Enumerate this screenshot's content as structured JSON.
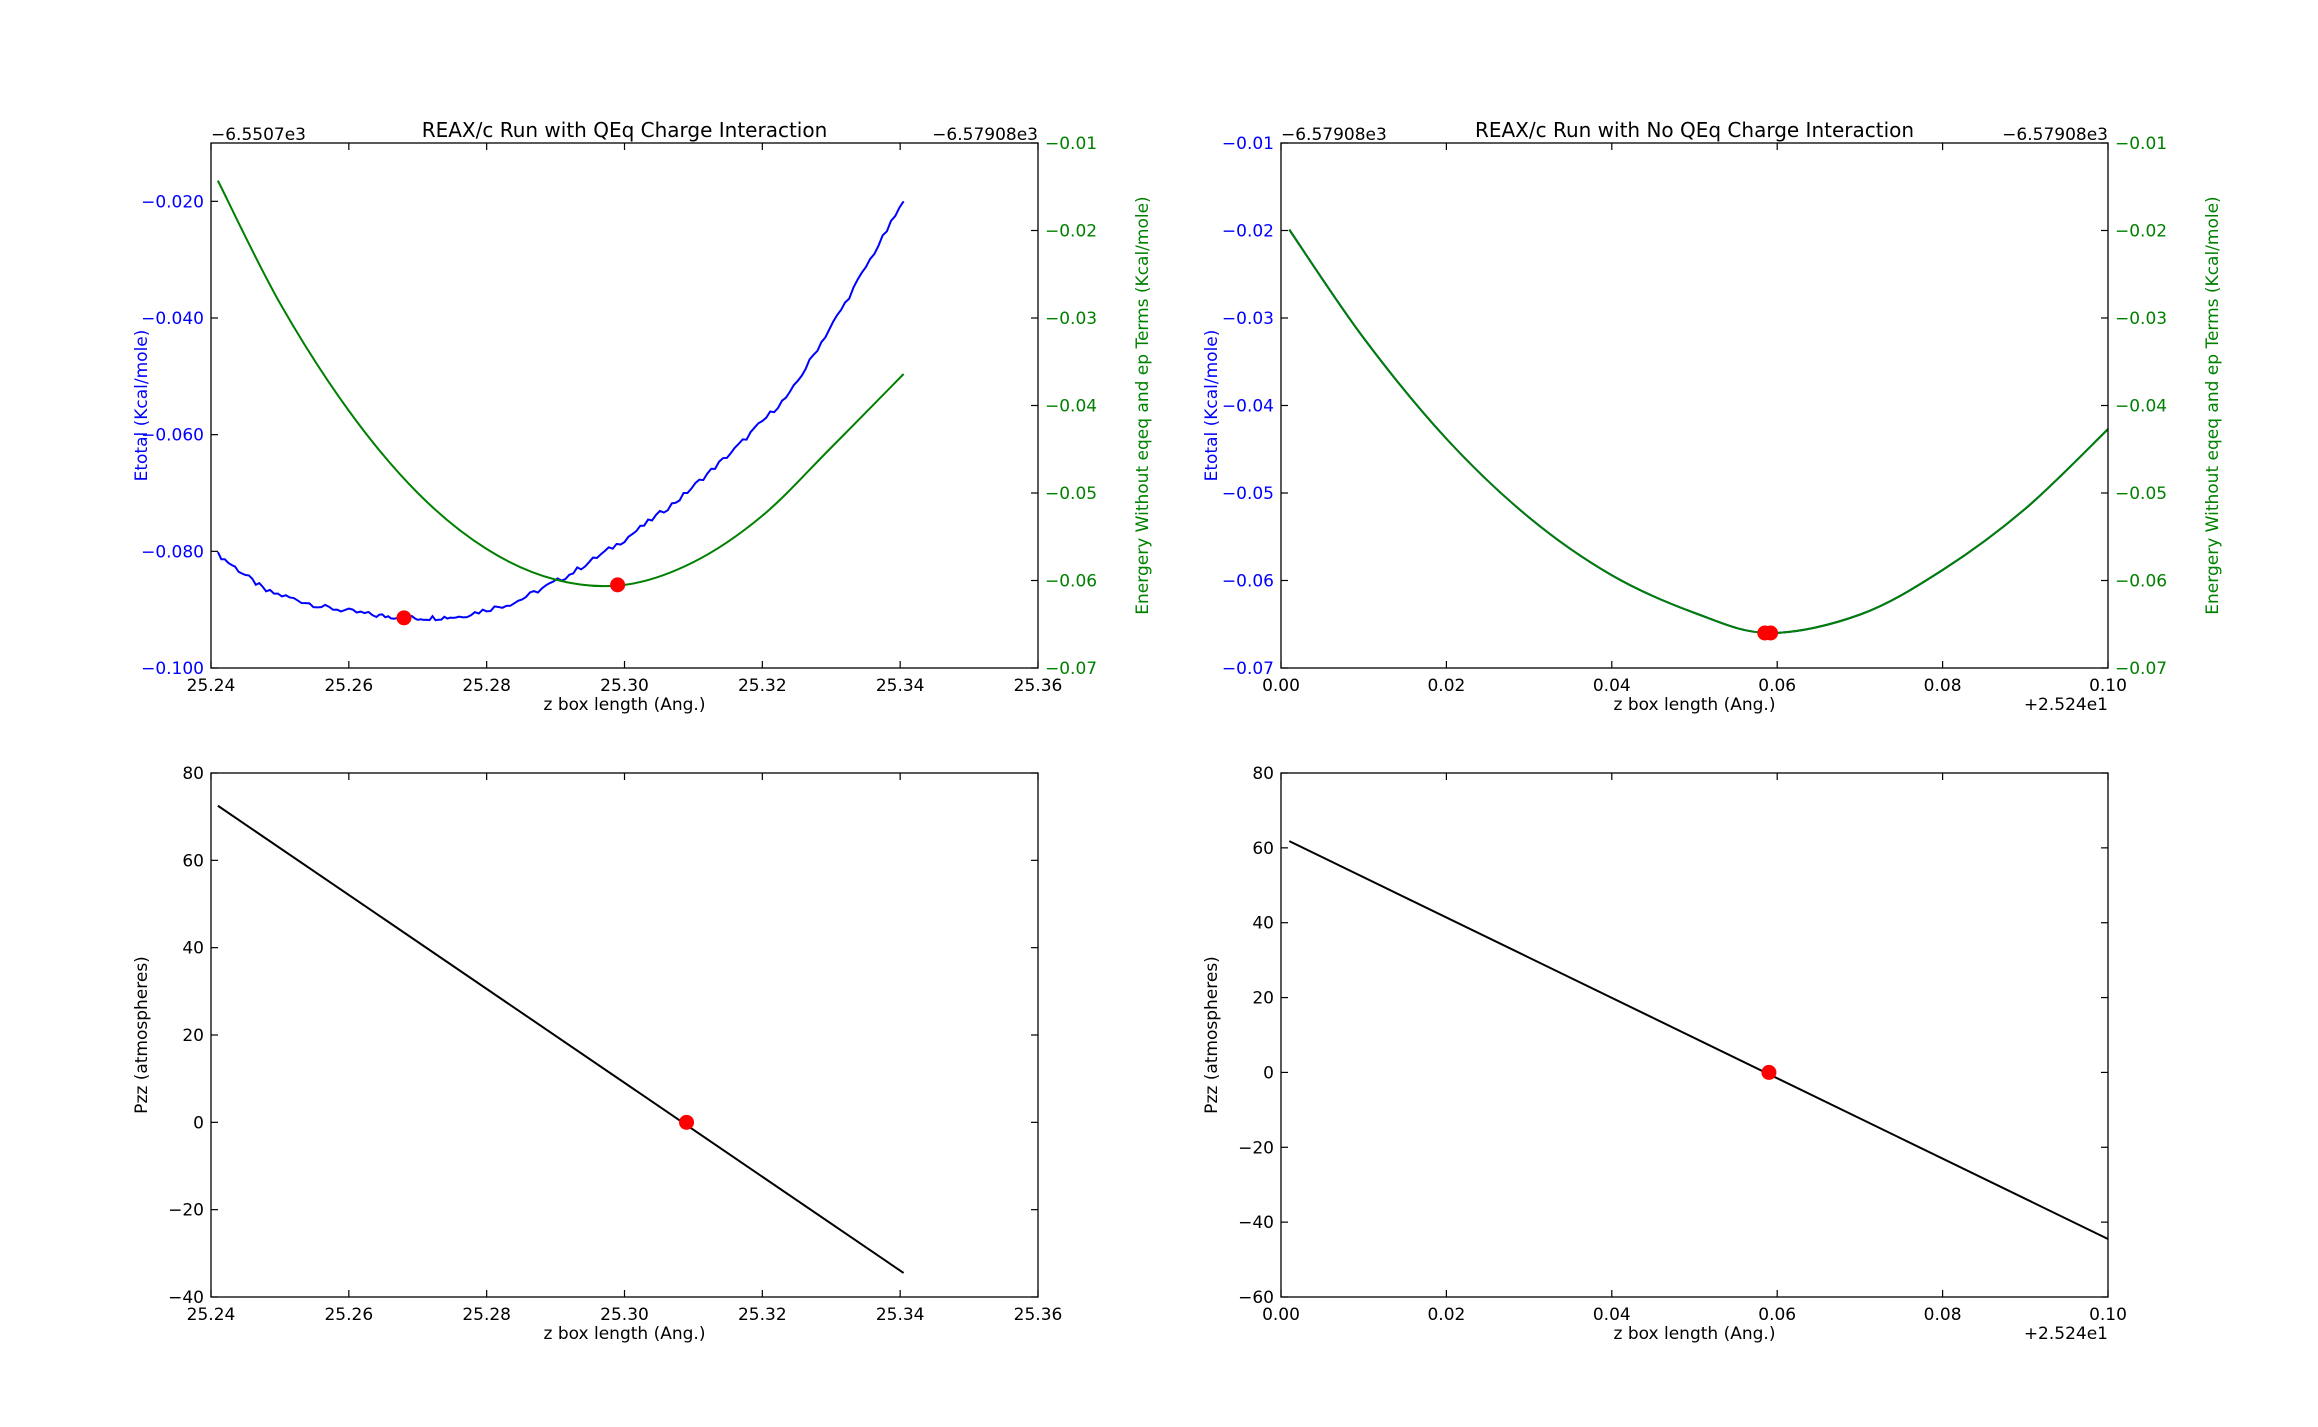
{
  "figure": {
    "colors": {
      "blue": "#0000ff",
      "green": "#008000",
      "black": "#000000",
      "red": "#ff0000",
      "background": "#ffffff"
    }
  },
  "chart_data": [
    {
      "id": "qeq-energy",
      "type": "line",
      "title": "REAX/c Run with QEq Charge Interaction",
      "xlabel": "z box length (Ang.)",
      "xlim": [
        25.24,
        25.36
      ],
      "xticks": [
        "25.24",
        "25.26",
        "25.28",
        "25.30",
        "25.32",
        "25.34",
        "25.36"
      ],
      "left_axis": {
        "label": "Etotal (Kcal/mole)",
        "offset_text": "−6.5507e3",
        "ylim": [
          -0.1,
          -0.01
        ],
        "ticks": [
          -0.1,
          -0.08,
          -0.06,
          -0.04,
          -0.02
        ],
        "tick_labels": [
          "−0.100",
          "−0.080",
          "−0.060",
          "−0.040",
          "−0.020"
        ],
        "color": "#0000ff"
      },
      "right_axis": {
        "label": "Energery Without eqeq and ep Terms (Kcal/mole)",
        "offset_text": "−6.57908e3",
        "ylim": [
          -0.07,
          -0.01
        ],
        "ticks": [
          -0.07,
          -0.06,
          -0.05,
          -0.04,
          -0.03,
          -0.02,
          -0.01
        ],
        "tick_labels": [
          "−0.07",
          "−0.06",
          "−0.05",
          "−0.04",
          "−0.03",
          "−0.02",
          "−0.01"
        ],
        "color": "#008000"
      },
      "series": [
        {
          "axis": "left",
          "color": "#0000ff",
          "noisy": true,
          "x": [
            25.241,
            25.248,
            25.256,
            25.264,
            25.27,
            25.276,
            25.284,
            25.292,
            25.3,
            25.308,
            25.316,
            25.324,
            25.332,
            25.3405
          ],
          "y": [
            -0.0805,
            -0.0868,
            -0.0895,
            -0.091,
            -0.0915,
            -0.0912,
            -0.0888,
            -0.084,
            -0.078,
            -0.071,
            -0.0625,
            -0.053,
            -0.0375,
            -0.02
          ]
        },
        {
          "axis": "right",
          "color": "#008000",
          "x": [
            25.241,
            25.25,
            25.26,
            25.27,
            25.28,
            25.29,
            25.3,
            25.31,
            25.32,
            25.33,
            25.3405
          ],
          "y": [
            -0.0143,
            -0.0283,
            -0.0406,
            -0.05,
            -0.0564,
            -0.0599,
            -0.0605,
            -0.0579,
            -0.0526,
            -0.0448,
            -0.0364
          ]
        }
      ],
      "markers": [
        {
          "axis": "left",
          "x": 25.268,
          "y": -0.0914,
          "color": "#ff0000"
        },
        {
          "axis": "right",
          "x": 25.299,
          "y": -0.0605,
          "color": "#ff0000"
        }
      ]
    },
    {
      "id": "noqeq-energy",
      "type": "line",
      "title": "REAX/c Run with No QEq Charge Interaction",
      "xlabel": "z box length (Ang.)",
      "xlim": [
        0,
        0.1
      ],
      "x_offset_text": "+2.524e1",
      "xticks": [
        "0.00",
        "0.02",
        "0.04",
        "0.06",
        "0.08",
        "0.10"
      ],
      "left_axis": {
        "label": "Etotal (Kcal/mole)",
        "offset_text": "−6.57908e3",
        "ylim": [
          -0.07,
          -0.01
        ],
        "ticks": [
          -0.07,
          -0.06,
          -0.05,
          -0.04,
          -0.03,
          -0.02,
          -0.01
        ],
        "tick_labels": [
          "−0.07",
          "−0.06",
          "−0.05",
          "−0.04",
          "−0.03",
          "−0.02",
          "−0.01"
        ],
        "color": "#0000ff"
      },
      "right_axis": {
        "label": "Energery Without eqeq and ep Terms (Kcal/mole)",
        "offset_text": "−6.57908e3",
        "ylim": [
          -0.07,
          -0.01
        ],
        "ticks": [
          -0.07,
          -0.06,
          -0.05,
          -0.04,
          -0.03,
          -0.02,
          -0.01
        ],
        "tick_labels": [
          "−0.07",
          "−0.06",
          "−0.05",
          "−0.04",
          "−0.03",
          "−0.02",
          "−0.01"
        ],
        "color": "#008000"
      },
      "series": [
        {
          "axis": "left",
          "color": "#0000ff",
          "x": [
            0.001,
            0.01,
            0.02,
            0.03,
            0.04,
            0.05,
            0.059,
            0.07,
            0.08,
            0.09,
            0.1
          ],
          "y": [
            -0.0199,
            -0.0323,
            -0.0438,
            -0.0528,
            -0.0594,
            -0.0637,
            -0.066,
            -0.0639,
            -0.0588,
            -0.0518,
            -0.0427
          ]
        },
        {
          "axis": "right",
          "color": "#008000",
          "x": [
            0.001,
            0.01,
            0.02,
            0.03,
            0.04,
            0.05,
            0.059,
            0.07,
            0.08,
            0.09,
            0.1
          ],
          "y": [
            -0.0199,
            -0.0323,
            -0.0438,
            -0.0528,
            -0.0594,
            -0.0637,
            -0.066,
            -0.0639,
            -0.0588,
            -0.0518,
            -0.0427
          ]
        }
      ],
      "markers": [
        {
          "axis": "left",
          "x": 0.0585,
          "y": -0.066,
          "color": "#ff0000"
        },
        {
          "axis": "right",
          "x": 0.0592,
          "y": -0.066,
          "color": "#ff0000"
        }
      ]
    },
    {
      "id": "qeq-pressure",
      "type": "line",
      "title": "",
      "xlabel": "z box length (Ang.)",
      "xlim": [
        25.24,
        25.36
      ],
      "xticks": [
        "25.24",
        "25.26",
        "25.28",
        "25.30",
        "25.32",
        "25.34",
        "25.36"
      ],
      "left_axis": {
        "label": "Pzz (atmospheres)",
        "ylim": [
          -40,
          80
        ],
        "ticks": [
          -40,
          -20,
          0,
          20,
          40,
          60,
          80
        ],
        "tick_labels": [
          "−40",
          "−20",
          "0",
          "20",
          "40",
          "60",
          "80"
        ],
        "color": "#000000"
      },
      "series": [
        {
          "axis": "left",
          "color": "#000000",
          "x": [
            25.241,
            25.3405
          ],
          "y": [
            72.5,
            -34.5
          ]
        }
      ],
      "markers": [
        {
          "axis": "left",
          "x": 25.309,
          "y": 0,
          "color": "#ff0000"
        }
      ]
    },
    {
      "id": "noqeq-pressure",
      "type": "line",
      "title": "",
      "xlabel": "z box length (Ang.)",
      "xlim": [
        0,
        0.1
      ],
      "x_offset_text": "+2.524e1",
      "xticks": [
        "0.00",
        "0.02",
        "0.04",
        "0.06",
        "0.08",
        "0.10"
      ],
      "left_axis": {
        "label": "Pzz (atmospheres)",
        "ylim": [
          -60,
          80
        ],
        "ticks": [
          -60,
          -40,
          -20,
          0,
          20,
          40,
          60,
          80
        ],
        "tick_labels": [
          "−60",
          "−40",
          "−20",
          "0",
          "20",
          "40",
          "60",
          "80"
        ],
        "color": "#000000"
      },
      "series": [
        {
          "axis": "left",
          "color": "#000000",
          "x": [
            0.001,
            0.1
          ],
          "y": [
            61.8,
            -44.5
          ]
        }
      ],
      "markers": [
        {
          "axis": "left",
          "x": 0.059,
          "y": 0,
          "color": "#ff0000"
        }
      ]
    }
  ]
}
